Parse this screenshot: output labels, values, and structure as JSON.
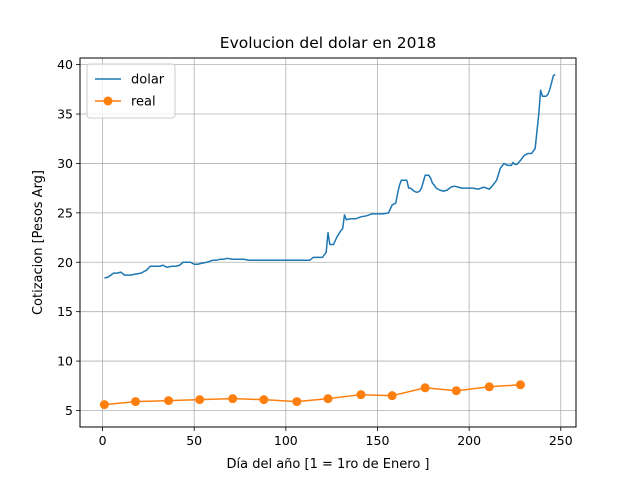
{
  "chart_data": {
    "type": "line",
    "title": "Evolucion del dolar en 2018",
    "xlabel": "Día del año [1 = 1ro de Enero ]",
    "ylabel": "Cotizacion [Pesos Arg]",
    "xlim": [
      -12.3,
      258.3
    ],
    "ylim": [
      3.33,
      40.67
    ],
    "xticks": [
      0,
      50,
      100,
      150,
      200,
      250
    ],
    "yticks": [
      5,
      10,
      15,
      20,
      25,
      30,
      35,
      40
    ],
    "grid": true,
    "legend": {
      "placement": "top-left"
    },
    "series": [
      {
        "name": "dolar",
        "color": "#1f77b4",
        "marker": "none",
        "x": [
          1,
          3,
          6,
          8,
          10,
          12,
          13,
          15,
          18,
          21,
          24,
          26,
          29,
          31,
          33,
          35,
          38,
          40,
          42,
          44,
          46,
          48,
          50,
          52,
          54,
          57,
          60,
          62,
          64,
          66,
          68,
          71,
          74,
          77,
          80,
          83,
          86,
          89,
          92,
          95,
          98,
          101,
          104,
          107,
          110,
          113,
          115,
          117,
          120,
          122,
          123,
          124,
          126,
          128,
          130,
          131,
          132,
          133,
          135,
          138,
          141,
          144,
          147,
          150,
          153,
          156,
          158,
          160,
          161,
          162,
          163,
          164,
          166,
          167,
          168,
          170,
          171,
          172,
          173,
          174,
          176,
          178,
          179,
          180,
          181,
          182,
          184,
          186,
          188,
          190,
          192,
          194,
          196,
          198,
          200,
          202,
          205,
          208,
          211,
          213,
          215,
          217,
          219,
          221,
          223,
          224,
          225,
          226,
          228,
          230,
          232,
          234,
          236,
          238,
          239,
          240,
          241,
          242,
          243,
          244,
          245,
          246,
          247
        ],
        "y": [
          18.4,
          18.5,
          18.9,
          18.9,
          19.0,
          18.7,
          18.7,
          18.7,
          18.8,
          18.9,
          19.2,
          19.6,
          19.6,
          19.6,
          19.7,
          19.5,
          19.6,
          19.6,
          19.7,
          20.0,
          20.0,
          20.0,
          19.8,
          19.8,
          19.9,
          20.0,
          20.2,
          20.2,
          20.3,
          20.3,
          20.4,
          20.3,
          20.3,
          20.3,
          20.2,
          20.2,
          20.2,
          20.2,
          20.2,
          20.2,
          20.2,
          20.2,
          20.2,
          20.2,
          20.2,
          20.2,
          20.5,
          20.5,
          20.5,
          21.0,
          23.0,
          21.8,
          21.8,
          22.6,
          23.2,
          23.4,
          24.8,
          24.3,
          24.4,
          24.4,
          24.6,
          24.7,
          24.9,
          24.9,
          24.9,
          25.0,
          25.8,
          26.0,
          27.0,
          27.8,
          28.3,
          28.3,
          28.3,
          27.5,
          27.5,
          27.2,
          27.1,
          27.1,
          27.2,
          27.5,
          28.8,
          28.8,
          28.5,
          28.0,
          27.8,
          27.5,
          27.3,
          27.2,
          27.3,
          27.6,
          27.7,
          27.6,
          27.5,
          27.5,
          27.5,
          27.5,
          27.4,
          27.6,
          27.4,
          27.8,
          28.3,
          29.5,
          30.0,
          29.8,
          29.8,
          30.1,
          29.9,
          29.9,
          30.3,
          30.8,
          31.0,
          31.0,
          31.5,
          35.0,
          37.4,
          36.8,
          36.8,
          36.8,
          37.0,
          37.5,
          38.2,
          38.9,
          39.0
        ]
      },
      {
        "name": "real",
        "color": "#ff7f0e",
        "marker": "circle",
        "x": [
          1,
          18,
          36,
          53,
          71,
          88,
          106,
          123,
          141,
          158,
          176,
          193,
          211,
          228
        ],
        "y": [
          5.6,
          5.9,
          6.0,
          6.1,
          6.2,
          6.1,
          5.9,
          6.2,
          6.6,
          6.5,
          7.3,
          7.0,
          7.4,
          7.6
        ]
      }
    ]
  }
}
